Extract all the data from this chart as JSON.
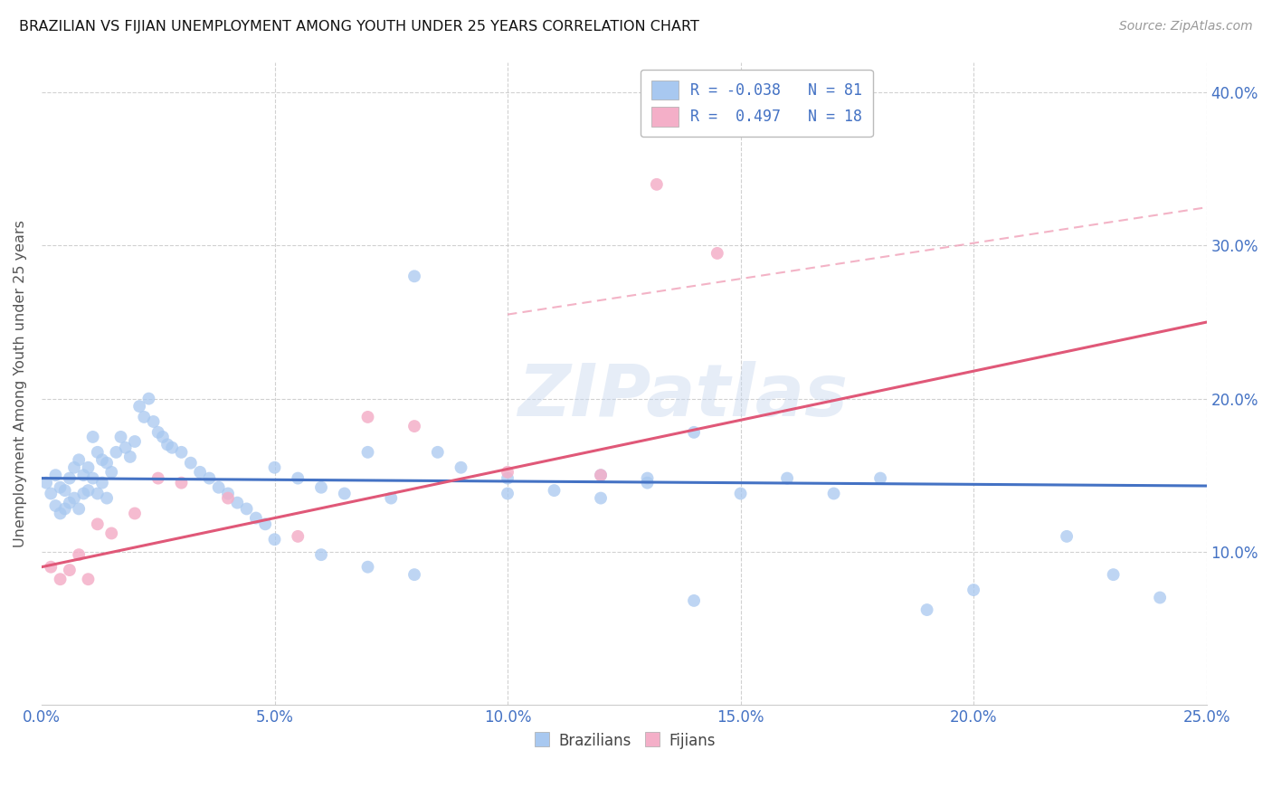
{
  "title": "BRAZILIAN VS FIJIAN UNEMPLOYMENT AMONG YOUTH UNDER 25 YEARS CORRELATION CHART",
  "source": "Source: ZipAtlas.com",
  "ylabel": "Unemployment Among Youth under 25 years",
  "xlim": [
    0.0,
    0.25
  ],
  "ylim": [
    0.0,
    0.42
  ],
  "xticks": [
    0.0,
    0.05,
    0.1,
    0.15,
    0.2,
    0.25
  ],
  "yticks": [
    0.1,
    0.2,
    0.3,
    0.4
  ],
  "brazil_color": "#a8c8f0",
  "brazil_color_line": "#4472c4",
  "fijian_color": "#f4afc8",
  "fijian_color_line": "#e05878",
  "r_brazil": -0.038,
  "n_brazil": 81,
  "r_fijian": 0.497,
  "n_fijian": 18,
  "watermark": "ZIPatlas",
  "brazil_line_start_y": 0.148,
  "brazil_line_end_y": 0.143,
  "fijian_line_start_y": 0.09,
  "fijian_line_end_y": 0.25,
  "brazil_x": [
    0.001,
    0.002,
    0.003,
    0.003,
    0.004,
    0.004,
    0.005,
    0.005,
    0.006,
    0.006,
    0.007,
    0.007,
    0.008,
    0.008,
    0.009,
    0.009,
    0.01,
    0.01,
    0.011,
    0.011,
    0.012,
    0.012,
    0.013,
    0.013,
    0.014,
    0.014,
    0.015,
    0.016,
    0.017,
    0.018,
    0.019,
    0.02,
    0.021,
    0.022,
    0.023,
    0.024,
    0.025,
    0.026,
    0.027,
    0.028,
    0.03,
    0.032,
    0.034,
    0.036,
    0.038,
    0.04,
    0.042,
    0.044,
    0.046,
    0.048,
    0.05,
    0.055,
    0.06,
    0.065,
    0.07,
    0.075,
    0.08,
    0.085,
    0.09,
    0.1,
    0.11,
    0.12,
    0.13,
    0.14,
    0.15,
    0.16,
    0.17,
    0.18,
    0.19,
    0.2,
    0.05,
    0.06,
    0.07,
    0.08,
    0.1,
    0.12,
    0.13,
    0.14,
    0.22,
    0.23,
    0.24
  ],
  "brazil_y": [
    0.145,
    0.138,
    0.15,
    0.13,
    0.142,
    0.125,
    0.14,
    0.128,
    0.148,
    0.132,
    0.155,
    0.135,
    0.16,
    0.128,
    0.15,
    0.138,
    0.155,
    0.14,
    0.175,
    0.148,
    0.165,
    0.138,
    0.16,
    0.145,
    0.158,
    0.135,
    0.152,
    0.165,
    0.175,
    0.168,
    0.162,
    0.172,
    0.195,
    0.188,
    0.2,
    0.185,
    0.178,
    0.175,
    0.17,
    0.168,
    0.165,
    0.158,
    0.152,
    0.148,
    0.142,
    0.138,
    0.132,
    0.128,
    0.122,
    0.118,
    0.155,
    0.148,
    0.142,
    0.138,
    0.165,
    0.135,
    0.28,
    0.165,
    0.155,
    0.148,
    0.14,
    0.15,
    0.145,
    0.178,
    0.138,
    0.148,
    0.138,
    0.148,
    0.062,
    0.075,
    0.108,
    0.098,
    0.09,
    0.085,
    0.138,
    0.135,
    0.148,
    0.068,
    0.11,
    0.085,
    0.07
  ],
  "fijian_x": [
    0.002,
    0.004,
    0.006,
    0.008,
    0.01,
    0.012,
    0.015,
    0.02,
    0.025,
    0.03,
    0.04,
    0.055,
    0.07,
    0.08,
    0.1,
    0.12,
    0.132,
    0.145
  ],
  "fijian_y": [
    0.09,
    0.082,
    0.088,
    0.098,
    0.082,
    0.118,
    0.112,
    0.125,
    0.148,
    0.145,
    0.135,
    0.11,
    0.188,
    0.182,
    0.152,
    0.15,
    0.34,
    0.295
  ]
}
